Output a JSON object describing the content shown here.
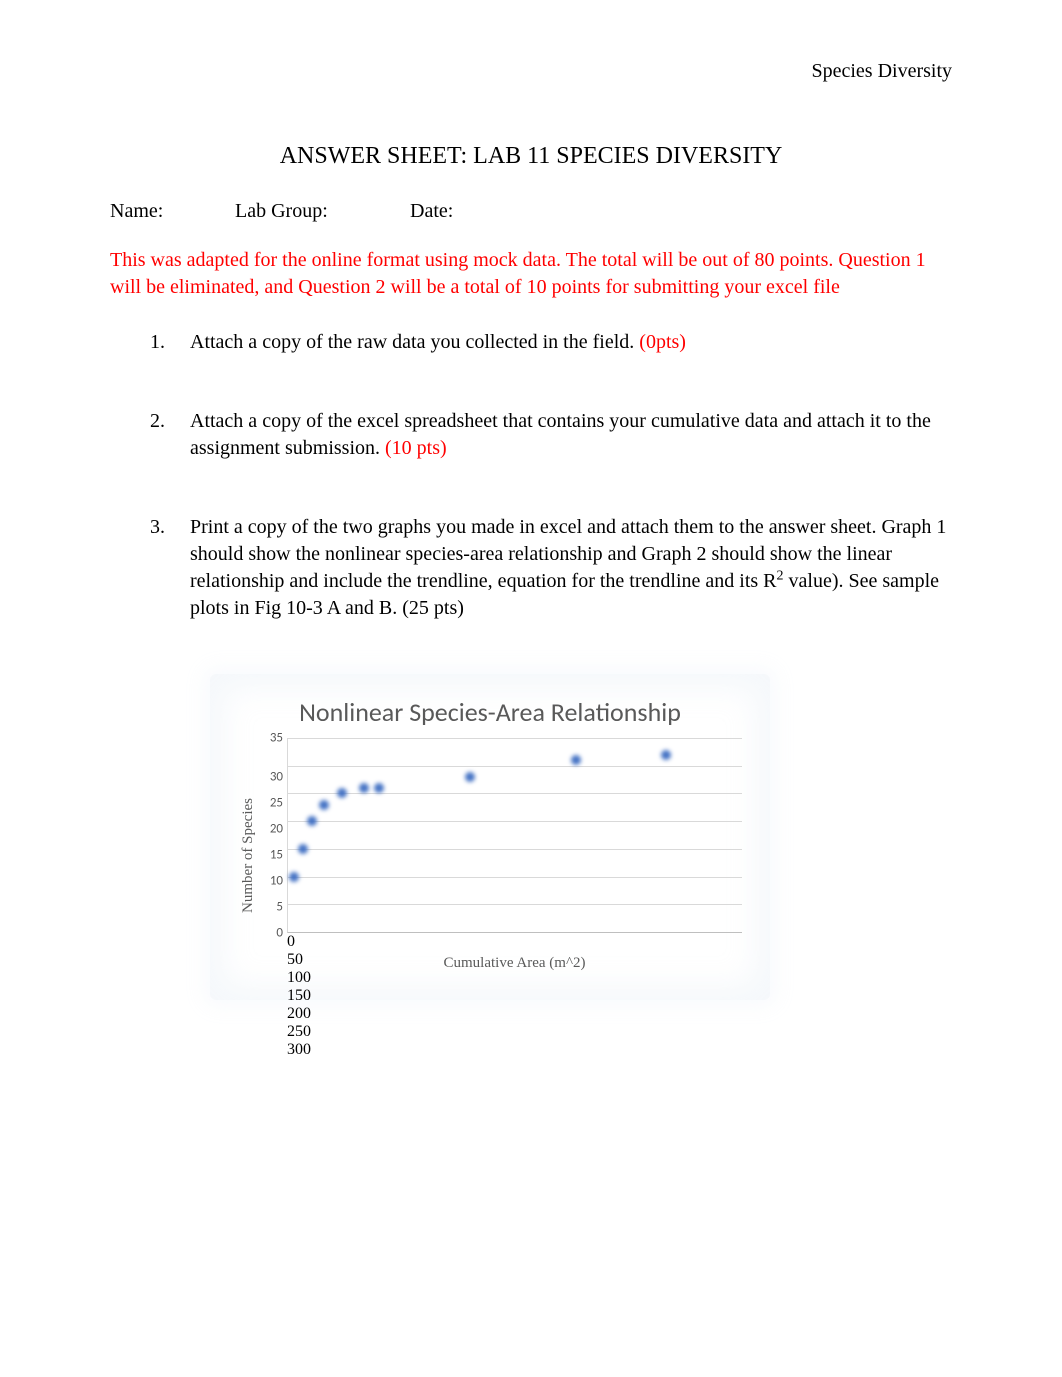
{
  "header": {
    "right": "Species Diversity"
  },
  "title": "ANSWER SHEET: LAB 11 SPECIES DIVERSITY",
  "meta": {
    "name_label": "Name:",
    "group_label": "Lab Group:",
    "date_label": "Date:"
  },
  "notice": "This was adapted for the online format using mock data. The total will be out of 80 points. Question 1 will be eliminated, and Question 2 will be a total of 10 points for submitting your excel file",
  "questions": [
    {
      "num": "1.",
      "text": "Attach a copy of the raw data you collected in the field. ",
      "pts": "(0pts)",
      "trailing": ""
    },
    {
      "num": "2.",
      "text": "Attach a copy of the excel spreadsheet that contains your cumulative data and attach it to the assignment submission. ",
      "pts": "(10 pts)",
      "trailing": ""
    },
    {
      "num": "3.",
      "text_a": "Print a copy of the two graphs you made in excel and attach them to the answer sheet. Graph 1 should show the nonlinear species-area relationship and Graph 2 should show the linear relationship and include the trendline, equation for the trendline and its R",
      "text_b": " value). See sample plots in Fig 10-3 A and B. ",
      "pts": "(25 pts)",
      "sup": "2"
    }
  ],
  "chart": {
    "type": "scatter",
    "title": "Nonlinear Species-Area Relationship",
    "ylabel": "Number of Species",
    "xlabel": "Cumulative Area (m^2)",
    "xlim": [
      0,
      300
    ],
    "ylim": [
      0,
      35
    ],
    "ytick_step": 5,
    "xtick_step": 50,
    "yticks": [
      35,
      30,
      25,
      20,
      15,
      10,
      5,
      0
    ],
    "xticks": [
      0,
      50,
      100,
      150,
      200,
      250,
      300
    ],
    "grid_color": "#d9d9d9",
    "background_color": "#ffffff",
    "point_color": "#4472c4",
    "point_radius": 5,
    "title_fontsize": 26,
    "label_fontsize": 15,
    "tick_fontsize": 13,
    "data": [
      {
        "x": 4,
        "y": 10
      },
      {
        "x": 10,
        "y": 15
      },
      {
        "x": 16,
        "y": 20
      },
      {
        "x": 24,
        "y": 23
      },
      {
        "x": 36,
        "y": 25
      },
      {
        "x": 50,
        "y": 26
      },
      {
        "x": 60,
        "y": 26
      },
      {
        "x": 120,
        "y": 28
      },
      {
        "x": 190,
        "y": 31
      },
      {
        "x": 250,
        "y": 32
      }
    ]
  }
}
